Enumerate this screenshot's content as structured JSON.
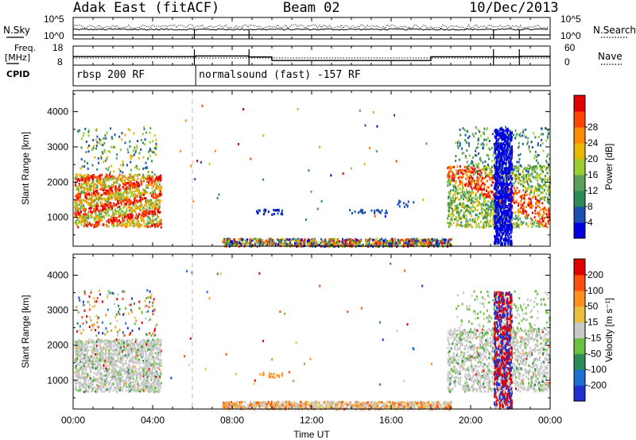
{
  "header": {
    "title": "Adak East (fitACF)",
    "beam": "Beam 02",
    "date": "10/Dec/2013"
  },
  "side_labels": {
    "nsky": "N.Sky",
    "freq": "Freq.",
    "freq_unit": "[MHz]",
    "cpid": "CPID",
    "nsearch": "N.Search",
    "nave": "Nave"
  },
  "colors": {
    "power_scale": [
      "#0000e0",
      "#1c4fb0",
      "#2e8b57",
      "#5aa05a",
      "#9acd32",
      "#e8b800",
      "#ff8c00",
      "#ff4500",
      "#e00000"
    ],
    "velocity_scale": [
      "#2030d0",
      "#1c6fd0",
      "#2e8b57",
      "#6ac040",
      "#c8c8c8",
      "#e8c040",
      "#ff9020",
      "#ff5010",
      "#e00000"
    ]
  },
  "chart_data": [
    {
      "panel": "noise",
      "type": "line",
      "x_range": [
        "00:00",
        "24:00"
      ],
      "left_ticks": [
        "10^5",
        "10^0"
      ],
      "right_ticks": [
        "10^5",
        "10^0"
      ],
      "series": [
        {
          "name": "N.Sky",
          "style": "solid"
        },
        {
          "name": "N.Search",
          "style": "dotted"
        }
      ]
    },
    {
      "panel": "frequency_nave",
      "type": "line",
      "left_ticks": [
        "18",
        "8"
      ],
      "right_ticks": [
        "60",
        "0"
      ],
      "series": [
        {
          "name": "Freq.",
          "style": "solid",
          "x": [
            "00:00",
            "06:10",
            "06:10",
            "08:50",
            "08:50",
            "10:00",
            "10:00",
            "18:00",
            "18:00",
            "21:10",
            "21:10",
            "22:30",
            "22:30",
            "24:00"
          ],
          "y": [
            12.5,
            12.5,
            12.8,
            12.8,
            12.3,
            12.3,
            10.4,
            10.4,
            12.4,
            12.4,
            12.4,
            12.4,
            12.6,
            12.6
          ]
        },
        {
          "name": "Nave",
          "style": "dotted"
        }
      ]
    },
    {
      "panel": "cpid",
      "type": "table",
      "segments": [
        {
          "start": "00:00",
          "end": "06:10",
          "label": "rbsp 200 RF"
        },
        {
          "start": "06:10",
          "end": "24:00",
          "label": "normalsound (fast) -157 RF"
        }
      ]
    },
    {
      "panel": "power",
      "type": "heatmap",
      "xlabel": "",
      "ylabel": "Slant Range [km]",
      "yticks": [
        1000,
        2000,
        3000,
        4000
      ],
      "ylim": [
        180,
        4600
      ],
      "colorbar_label": "Power [dB]",
      "colorbar_ticks": [
        4,
        8,
        12,
        16,
        20,
        24,
        28
      ],
      "colorbar_range": [
        0,
        32
      ]
    },
    {
      "panel": "velocity",
      "type": "heatmap",
      "xlabel": "Time UT",
      "ylabel": "Slant Range [km]",
      "xticks": [
        "00:00",
        "04:00",
        "08:00",
        "12:00",
        "16:00",
        "20:00",
        "00:00"
      ],
      "yticks": [
        1000,
        2000,
        3000,
        4000
      ],
      "ylim": [
        180,
        4600
      ],
      "colorbar_label": "Velocity [m s⁻¹]",
      "colorbar_ticks": [
        -200,
        -100,
        -50,
        -15,
        15,
        50,
        100,
        200
      ]
    }
  ]
}
